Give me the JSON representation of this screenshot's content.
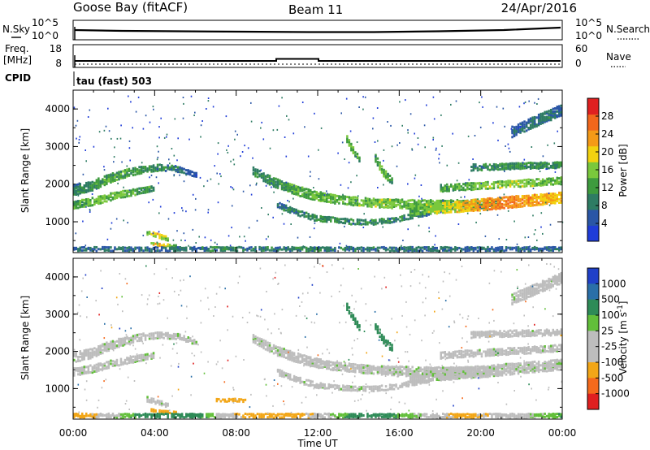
{
  "title": {
    "station": "Goose Bay (fitACF)",
    "beam": "Beam 11",
    "date": "24/Apr/2016"
  },
  "noise_panel": {
    "left_label": "N.Sky",
    "right_label": "N.Search",
    "ticks_left": [
      "10^5",
      "10^0"
    ],
    "ticks_right": [
      "10^5",
      "10^0"
    ]
  },
  "freq_panel": {
    "left_label_line1": "Freq.",
    "left_label_line2": "[MHz]",
    "right_label": "Nave",
    "ticks_left": [
      "18",
      "8"
    ],
    "ticks_right": [
      "60",
      "0"
    ],
    "cpid_label": "CPID",
    "cpid_text": "tau (fast) 503"
  },
  "x_axis": {
    "label": "Time UT",
    "ticks": [
      "00:00",
      "04:00",
      "08:00",
      "12:00",
      "16:00",
      "20:00",
      "00:00"
    ],
    "range_hours": [
      0,
      24
    ]
  },
  "colors": {
    "power_scale": [
      "#1f3cd8",
      "#2a56a6",
      "#2e7c63",
      "#3e9b3e",
      "#7ac83c",
      "#f2d20f",
      "#f59a17",
      "#f2671c",
      "#e02020"
    ],
    "velocity_scale": [
      "#2040c8",
      "#2a6fa8",
      "#2e8b57",
      "#62bf3a",
      "#bdbdbd",
      "#bdbdbd",
      "#f2a617",
      "#f56a1c",
      "#e02020"
    ],
    "ground_scatter": "#bdbdbd"
  },
  "chart_data": [
    {
      "type": "heatmap",
      "ylabel": "Slant Range [km]",
      "xlabel": "",
      "ylim": [
        180,
        4500
      ],
      "y_ticks": [
        "1000",
        "2000",
        "3000",
        "4000"
      ],
      "colorbar": {
        "label": "Power [dB]",
        "ticks": [
          "4",
          "8",
          "12",
          "16",
          "20",
          "24",
          "28"
        ],
        "range": [
          0,
          32
        ]
      },
      "bands": [
        {
          "t": [
            0.0,
            6.0
          ],
          "r": [
            1850,
            1950,
            2150,
            2300,
            2400,
            2450,
            2400,
            2250
          ],
          "w": [
            280,
            280,
            260,
            220,
            200,
            180,
            160,
            140
          ],
          "v": [
            9,
            11,
            13,
            12,
            11,
            9,
            8,
            6
          ]
        },
        {
          "t": [
            0.0,
            4.0
          ],
          "r": [
            1450,
            1550,
            1700,
            1800,
            1900
          ],
          "w": [
            220,
            220,
            200,
            180,
            160
          ],
          "v": [
            12,
            14,
            15,
            13,
            11
          ]
        },
        {
          "t": [
            3.6,
            4.6
          ],
          "r": [
            720,
            640,
            560
          ],
          "w": [
            140,
            140,
            120
          ],
          "v": [
            16,
            20,
            14
          ]
        },
        {
          "t": [
            3.8,
            5.0
          ],
          "r": [
            420,
            380,
            360
          ],
          "w": [
            80,
            80,
            60
          ],
          "v": [
            18,
            22,
            12
          ]
        },
        {
          "t": [
            8.8,
            21.0
          ],
          "r": [
            2350,
            2050,
            1850,
            1700,
            1600,
            1550,
            1500,
            1480,
            1450,
            1450,
            1450,
            1480,
            1500
          ],
          "w": [
            220,
            260,
            260,
            260,
            240,
            240,
            240,
            260,
            280,
            280,
            280,
            260,
            240
          ],
          "v": [
            9,
            11,
            13,
            14,
            14,
            15,
            16,
            15,
            14,
            13,
            12,
            12,
            11
          ]
        },
        {
          "t": [
            10.0,
            17.5
          ],
          "r": [
            1450,
            1250,
            1100,
            1050,
            1000,
            1000,
            1050,
            1150,
            1250
          ],
          "w": [
            160,
            160,
            160,
            150,
            150,
            150,
            150,
            150,
            150
          ],
          "v": [
            8,
            9,
            10,
            11,
            11,
            10,
            9,
            9,
            8
          ]
        },
        {
          "t": [
            16.5,
            24.0
          ],
          "r": [
            1300,
            1350,
            1400,
            1450,
            1500,
            1550,
            1600,
            1650
          ],
          "w": [
            260,
            280,
            300,
            320,
            320,
            320,
            300,
            300
          ],
          "v": [
            13,
            16,
            19,
            22,
            25,
            24,
            22,
            20
          ]
        },
        {
          "t": [
            18.0,
            24.0
          ],
          "r": [
            1900,
            1950,
            2000,
            2050,
            2100
          ],
          "w": [
            200,
            200,
            200,
            200,
            200
          ],
          "v": [
            12,
            14,
            16,
            15,
            13
          ]
        },
        {
          "t": [
            13.4,
            14.0
          ],
          "r": [
            3200,
            2900,
            2650
          ],
          "w": [
            200,
            200,
            180
          ],
          "v": [
            14,
            15,
            12
          ]
        },
        {
          "t": [
            14.8,
            15.6
          ],
          "r": [
            2700,
            2300,
            2100
          ],
          "w": [
            220,
            220,
            200
          ],
          "v": [
            12,
            14,
            11
          ]
        },
        {
          "t": [
            19.5,
            24.0
          ],
          "r": [
            2450,
            2480,
            2500,
            2520
          ],
          "w": [
            180,
            180,
            180,
            180
          ],
          "v": [
            9,
            10,
            11,
            10
          ]
        },
        {
          "t": [
            21.5,
            24.0
          ],
          "r": [
            3400,
            3600,
            3800,
            4000
          ],
          "w": [
            300,
            300,
            300,
            300
          ],
          "v": [
            6,
            7,
            8,
            7
          ]
        },
        {
          "t": [
            0.0,
            24.0
          ],
          "r": [
            260,
            260,
            260,
            260,
            260,
            260
          ],
          "w": [
            160,
            160,
            160,
            160,
            160,
            160
          ],
          "v": [
            7,
            8,
            9,
            8,
            7,
            7
          ]
        }
      ]
    },
    {
      "type": "heatmap",
      "ylabel": "Slant Range [km]",
      "xlabel": "Time UT",
      "ylim": [
        180,
        4500
      ],
      "y_ticks": [
        "1000",
        "2000",
        "3000",
        "4000"
      ],
      "colorbar": {
        "label": "Velocity [m s^-1]",
        "ticks": [
          "1000",
          "500",
          "100",
          "25",
          "-25",
          "-100",
          "-500",
          "-1000"
        ],
        "range": [
          -1500,
          1500
        ]
      },
      "bands": [
        {
          "t": [
            0.0,
            6.0
          ],
          "r": [
            1850,
            1950,
            2150,
            2300,
            2400,
            2450,
            2400,
            2250
          ],
          "w": [
            280,
            280,
            260,
            220,
            200,
            180,
            160,
            140
          ],
          "v": [
            0,
            0,
            0,
            0,
            0,
            0,
            0,
            0
          ]
        },
        {
          "t": [
            0.0,
            4.0
          ],
          "r": [
            1450,
            1550,
            1700,
            1800,
            1900
          ],
          "w": [
            220,
            220,
            200,
            180,
            160
          ],
          "v": [
            0,
            0,
            0,
            0,
            0
          ]
        },
        {
          "t": [
            3.6,
            4.6
          ],
          "r": [
            720,
            640,
            560
          ],
          "w": [
            140,
            140,
            120
          ],
          "v": [
            0,
            0,
            0
          ]
        },
        {
          "t": [
            3.8,
            5.0
          ],
          "r": [
            420,
            380,
            360
          ],
          "w": [
            80,
            80,
            60
          ],
          "v": [
            -300,
            -400,
            -300
          ]
        },
        {
          "t": [
            7.0,
            8.4
          ],
          "r": [
            700,
            700,
            680
          ],
          "w": [
            100,
            100,
            100
          ],
          "v": [
            -250,
            -300,
            -250
          ]
        },
        {
          "t": [
            8.8,
            21.0
          ],
          "r": [
            2350,
            2050,
            1850,
            1700,
            1600,
            1550,
            1500,
            1480,
            1450,
            1450,
            1450,
            1480,
            1500
          ],
          "w": [
            220,
            260,
            260,
            260,
            240,
            240,
            240,
            260,
            280,
            280,
            280,
            260,
            240
          ],
          "v": [
            0,
            0,
            0,
            0,
            0,
            0,
            0,
            0,
            0,
            0,
            0,
            0,
            0
          ]
        },
        {
          "t": [
            10.0,
            17.5
          ],
          "r": [
            1450,
            1250,
            1100,
            1050,
            1000,
            1000,
            1050,
            1150,
            1250
          ],
          "w": [
            160,
            160,
            160,
            150,
            150,
            150,
            150,
            150,
            150
          ],
          "v": [
            0,
            0,
            0,
            0,
            0,
            0,
            0,
            0,
            0
          ]
        },
        {
          "t": [
            16.5,
            24.0
          ],
          "r": [
            1300,
            1350,
            1400,
            1450,
            1500,
            1550,
            1600,
            1650
          ],
          "w": [
            260,
            280,
            300,
            320,
            320,
            320,
            300,
            300
          ],
          "v": [
            0,
            0,
            0,
            0,
            0,
            0,
            0,
            0
          ]
        },
        {
          "t": [
            18.0,
            24.0
          ],
          "r": [
            1900,
            1950,
            2000,
            2050,
            2100
          ],
          "w": [
            200,
            200,
            200,
            200,
            200
          ],
          "v": [
            0,
            0,
            0,
            0,
            0
          ]
        },
        {
          "t": [
            13.4,
            14.0
          ],
          "r": [
            3200,
            2900,
            2650
          ],
          "w": [
            200,
            200,
            180
          ],
          "v": [
            300,
            400,
            200
          ]
        },
        {
          "t": [
            14.8,
            15.6
          ],
          "r": [
            2700,
            2300,
            2100
          ],
          "w": [
            220,
            220,
            200
          ],
          "v": [
            200,
            300,
            150
          ]
        },
        {
          "t": [
            19.5,
            24.0
          ],
          "r": [
            2450,
            2480,
            2500,
            2520
          ],
          "w": [
            180,
            180,
            180,
            180
          ],
          "v": [
            0,
            -50,
            0,
            -80
          ]
        },
        {
          "t": [
            21.5,
            24.0
          ],
          "r": [
            3400,
            3600,
            3800,
            4000
          ],
          "w": [
            300,
            300,
            300,
            300
          ],
          "v": [
            0,
            0,
            -60,
            0
          ]
        },
        {
          "t": [
            0.0,
            24.0
          ],
          "r": [
            260,
            260,
            260,
            260,
            260,
            260
          ],
          "w": [
            160,
            160,
            160,
            160,
            160,
            160
          ],
          "v": [
            -200,
            300,
            -300,
            200,
            -150,
            100
          ]
        }
      ]
    }
  ]
}
